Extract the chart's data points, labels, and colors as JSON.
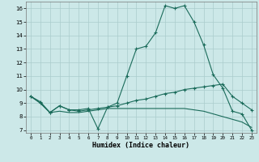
{
  "xlabel": "Humidex (Indice chaleur)",
  "bg_color": "#cce8e8",
  "grid_color": "#aacccc",
  "line_color": "#1a6b5a",
  "xlim": [
    -0.5,
    23.5
  ],
  "ylim": [
    6.8,
    16.5
  ],
  "xticks": [
    0,
    1,
    2,
    3,
    4,
    5,
    6,
    7,
    8,
    9,
    10,
    11,
    12,
    13,
    14,
    15,
    16,
    17,
    18,
    19,
    20,
    21,
    22,
    23
  ],
  "yticks": [
    7,
    8,
    9,
    10,
    11,
    12,
    13,
    14,
    15,
    16
  ],
  "line1_x": [
    0,
    1,
    2,
    3,
    4,
    5,
    6,
    7,
    8,
    9,
    10,
    11,
    12,
    13,
    14,
    15,
    16,
    17,
    18,
    19,
    20,
    21,
    22,
    23
  ],
  "line1_y": [
    9.5,
    9.1,
    8.3,
    8.8,
    8.5,
    8.5,
    8.6,
    7.1,
    8.7,
    9.0,
    11.0,
    13.0,
    13.2,
    14.2,
    16.2,
    16.0,
    16.2,
    15.0,
    13.3,
    11.1,
    10.1,
    8.4,
    8.2,
    7.0
  ],
  "line2_x": [
    0,
    1,
    2,
    3,
    4,
    5,
    6,
    7,
    8,
    9,
    10,
    11,
    12,
    13,
    14,
    15,
    16,
    17,
    18,
    19,
    20,
    21,
    22,
    23
  ],
  "line2_y": [
    9.5,
    9.0,
    8.3,
    8.8,
    8.5,
    8.4,
    8.5,
    8.6,
    8.7,
    8.8,
    9.0,
    9.2,
    9.3,
    9.5,
    9.7,
    9.8,
    10.0,
    10.1,
    10.2,
    10.3,
    10.4,
    9.5,
    9.0,
    8.5
  ],
  "line3_x": [
    0,
    1,
    2,
    3,
    4,
    5,
    6,
    7,
    8,
    9,
    10,
    11,
    12,
    13,
    14,
    15,
    16,
    17,
    18,
    19,
    20,
    21,
    22,
    23
  ],
  "line3_y": [
    9.5,
    9.0,
    8.3,
    8.4,
    8.3,
    8.3,
    8.4,
    8.5,
    8.6,
    8.6,
    8.6,
    8.6,
    8.6,
    8.6,
    8.6,
    8.6,
    8.6,
    8.5,
    8.4,
    8.2,
    8.0,
    7.8,
    7.6,
    7.2
  ]
}
